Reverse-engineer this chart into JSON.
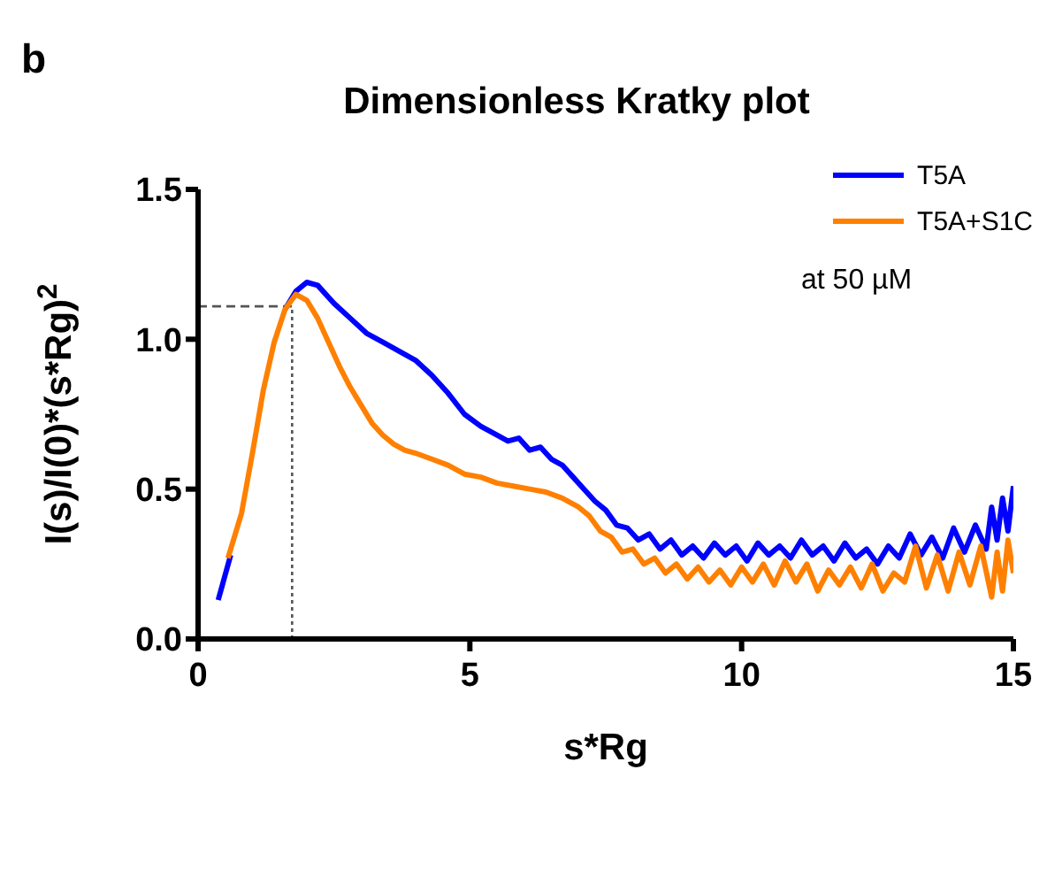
{
  "chart_data": {
    "type": "line",
    "title": "Dimensionless Kratky plot",
    "xlabel": "s*Rg",
    "ylabel": "I(s)/I(0)*(s*Rg)$^{2}$",
    "annotations": [
      "b",
      "at 50 µM"
    ],
    "xlim": [
      0,
      15
    ],
    "xticks": [
      0,
      5,
      10,
      15
    ],
    "ylim": [
      0,
      1.5
    ],
    "yticks": [
      {
        "value": 0,
        "label": "0.0"
      },
      0.5,
      {
        "value": 1,
        "label": "1.0"
      },
      1.5
    ],
    "grid": false,
    "legend": "top right",
    "marker": "none",
    "line_style": "solid",
    "ref_lines": [
      {
        "axis": "x",
        "value": 1.73,
        "color": "#555555",
        "line_style": "dotted"
      },
      {
        "axis": "y",
        "value": 1.11,
        "color": "#555555",
        "line_style": "dashed"
      }
    ],
    "series": [
      {
        "name": "T5A",
        "color": "#0000ff",
        "x": [
          0.37,
          0.6,
          0.8,
          1.0,
          1.2,
          1.4,
          1.6,
          1.8,
          2.0,
          2.2,
          2.5,
          2.8,
          3.1,
          3.4,
          3.7,
          4.0,
          4.3,
          4.6,
          4.9,
          5.2,
          5.5,
          5.7,
          5.9,
          6.1,
          6.3,
          6.5,
          6.7,
          6.9,
          7.1,
          7.3,
          7.5,
          7.7,
          7.9,
          8.1,
          8.3,
          8.5,
          8.7,
          8.9,
          9.1,
          9.3,
          9.5,
          9.7,
          9.9,
          10.1,
          10.3,
          10.5,
          10.7,
          10.9,
          11.1,
          11.3,
          11.5,
          11.7,
          11.9,
          12.1,
          12.3,
          12.5,
          12.7,
          12.9,
          13.1,
          13.3,
          13.5,
          13.7,
          13.9,
          14.1,
          14.3,
          14.5,
          14.6,
          14.7,
          14.8,
          14.9,
          15.0
        ],
        "values": [
          0.13,
          0.28,
          null,
          null,
          null,
          null,
          1.1,
          1.16,
          1.19,
          1.18,
          1.12,
          1.07,
          1.02,
          0.99,
          0.96,
          0.93,
          0.88,
          0.82,
          0.75,
          0.71,
          0.68,
          0.66,
          0.67,
          0.63,
          0.64,
          0.6,
          0.58,
          0.54,
          0.5,
          0.46,
          0.43,
          0.38,
          0.37,
          0.33,
          0.35,
          0.3,
          0.33,
          0.28,
          0.31,
          0.27,
          0.32,
          0.28,
          0.31,
          0.26,
          0.32,
          0.28,
          0.31,
          0.27,
          0.33,
          0.28,
          0.31,
          0.26,
          0.32,
          0.27,
          0.3,
          0.25,
          0.31,
          0.27,
          0.35,
          0.28,
          0.34,
          0.27,
          0.37,
          0.29,
          0.38,
          0.3,
          0.44,
          0.33,
          0.47,
          0.36,
          0.51
        ]
      },
      {
        "name": "T5A+S1C",
        "color": "#ff8000",
        "x": [
          0.55,
          0.8,
          1.0,
          1.2,
          1.4,
          1.6,
          1.8,
          2.0,
          2.2,
          2.4,
          2.6,
          2.8,
          3.0,
          3.2,
          3.4,
          3.6,
          3.8,
          4.0,
          4.3,
          4.6,
          4.9,
          5.2,
          5.5,
          5.8,
          6.1,
          6.4,
          6.7,
          7.0,
          7.2,
          7.4,
          7.6,
          7.8,
          8.0,
          8.2,
          8.4,
          8.6,
          8.8,
          9.0,
          9.2,
          9.4,
          9.6,
          9.8,
          10.0,
          10.2,
          10.4,
          10.6,
          10.8,
          11.0,
          11.2,
          11.4,
          11.6,
          11.8,
          12.0,
          12.2,
          12.4,
          12.6,
          12.8,
          13.0,
          13.2,
          13.4,
          13.6,
          13.8,
          14.0,
          14.2,
          14.4,
          14.6,
          14.7,
          14.8,
          14.9,
          15.0
        ],
        "values": [
          0.27,
          0.42,
          0.62,
          0.83,
          0.99,
          1.1,
          1.15,
          1.13,
          1.07,
          0.99,
          0.91,
          0.84,
          0.78,
          0.72,
          0.68,
          0.65,
          0.63,
          0.62,
          0.6,
          0.58,
          0.55,
          0.54,
          0.52,
          0.51,
          0.5,
          0.49,
          0.47,
          0.44,
          0.41,
          0.36,
          0.34,
          0.29,
          0.3,
          0.25,
          0.27,
          0.22,
          0.25,
          0.2,
          0.24,
          0.19,
          0.23,
          0.18,
          0.24,
          0.19,
          0.25,
          0.18,
          0.26,
          0.19,
          0.25,
          0.16,
          0.23,
          0.18,
          0.24,
          0.17,
          0.25,
          0.16,
          0.22,
          0.19,
          0.31,
          0.17,
          0.28,
          0.16,
          0.29,
          0.18,
          0.31,
          0.14,
          0.29,
          0.16,
          0.33,
          0.22
        ]
      }
    ]
  }
}
